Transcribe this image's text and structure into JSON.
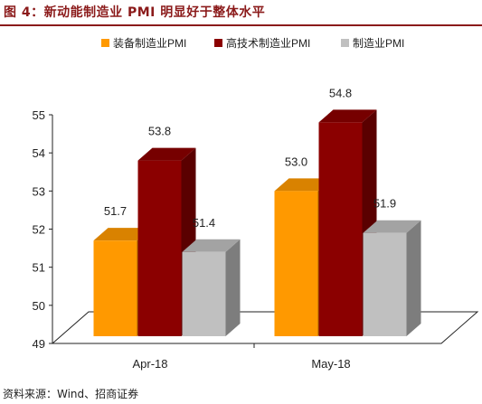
{
  "title": "图 4：新动能制造业 PMI 明显好于整体水平",
  "source": "资料来源：Wind、招商证券",
  "chart_data": {
    "type": "bar",
    "categories": [
      "Apr-18",
      "May-18"
    ],
    "series": [
      {
        "name": "装备制造业PMI",
        "values": [
          51.7,
          53.0
        ],
        "color": "#FF9900"
      },
      {
        "name": "高技术制造业PMI",
        "values": [
          53.8,
          54.8
        ],
        "color": "#8B0000"
      },
      {
        "name": "制造业PMI",
        "values": [
          51.4,
          51.9
        ],
        "color": "#C0C0C0"
      }
    ],
    "ylim": [
      49,
      55
    ],
    "yticks": [
      "49",
      "50",
      "51",
      "52",
      "53",
      "54",
      "55"
    ],
    "data_labels": [
      [
        "51.7",
        "53.0"
      ],
      [
        "53.8",
        "54.8"
      ],
      [
        "51.4",
        "51.9"
      ]
    ],
    "legend": "top",
    "grid": false,
    "three_d": true
  }
}
